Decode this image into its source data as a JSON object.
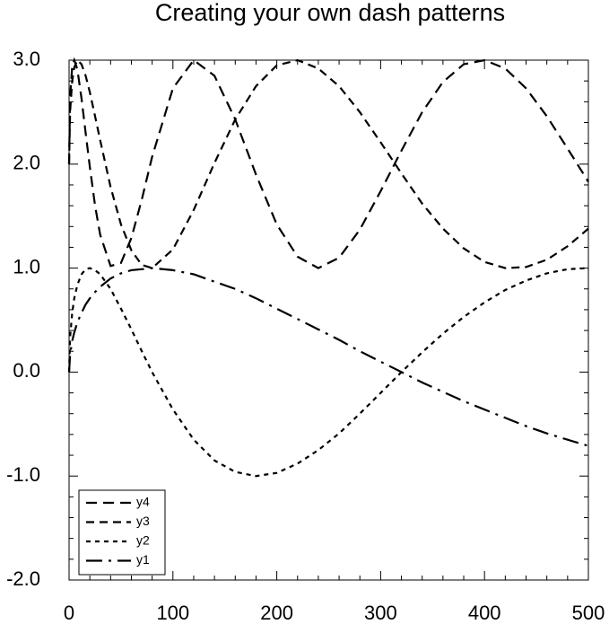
{
  "chart_data": {
    "type": "line",
    "title": "Creating your own dash patterns",
    "x": [
      0,
      1,
      3,
      5,
      8,
      12,
      16,
      20,
      25,
      30,
      40,
      50,
      60,
      70,
      80,
      100,
      120,
      140,
      160,
      180,
      200,
      220,
      240,
      260,
      280,
      300,
      320,
      340,
      360,
      380,
      400,
      420,
      440,
      460,
      480,
      500
    ],
    "series": [
      {
        "name": "y1",
        "color": "#000000",
        "values": [
          0,
          0.17,
          0.3,
          0.38,
          0.48,
          0.57,
          0.65,
          0.71,
          0.77,
          0.82,
          0.9,
          0.95,
          0.98,
          0.99,
          1.0,
          0.98,
          0.94,
          0.87,
          0.8,
          0.71,
          0.61,
          0.51,
          0.41,
          0.31,
          0.2,
          0.1,
          0.0,
          -0.1,
          -0.19,
          -0.28,
          -0.36,
          -0.44,
          -0.52,
          -0.59,
          -0.65,
          -0.71
        ]
      },
      {
        "name": "y2",
        "color": "#000000",
        "values": [
          0,
          0.34,
          0.57,
          0.71,
          0.84,
          0.94,
          0.99,
          1.0,
          0.98,
          0.94,
          0.8,
          0.61,
          0.41,
          0.2,
          0.0,
          -0.36,
          -0.65,
          -0.85,
          -0.96,
          -1.0,
          -0.97,
          -0.88,
          -0.75,
          -0.59,
          -0.4,
          -0.2,
          0.0,
          0.19,
          0.37,
          0.53,
          0.67,
          0.79,
          0.88,
          0.95,
          0.99,
          1.0
        ]
      },
      {
        "name": "y3",
        "color": "#000000",
        "values": [
          2.0,
          2.51,
          2.8,
          2.93,
          3.0,
          2.96,
          2.85,
          2.69,
          2.46,
          2.23,
          1.78,
          1.42,
          1.17,
          1.03,
          1.0,
          1.18,
          1.56,
          2.01,
          2.43,
          2.75,
          2.95,
          3.0,
          2.92,
          2.75,
          2.5,
          2.21,
          1.91,
          1.62,
          1.38,
          1.19,
          1.06,
          1.0,
          1.01,
          1.08,
          1.21,
          1.38
        ]
      },
      {
        "name": "y4",
        "color": "#000000",
        "values": [
          2.0,
          2.65,
          2.94,
          3.0,
          2.91,
          2.63,
          2.3,
          1.97,
          1.6,
          1.32,
          1.02,
          1.05,
          1.29,
          1.66,
          2.07,
          2.73,
          3.0,
          2.85,
          2.43,
          1.9,
          1.42,
          1.11,
          1.0,
          1.1,
          1.37,
          1.74,
          2.13,
          2.5,
          2.79,
          2.96,
          3.0,
          2.92,
          2.73,
          2.46,
          2.15,
          1.83
        ]
      }
    ],
    "xlim": [
      0,
      500
    ],
    "xticks": [
      0,
      100,
      200,
      300,
      400,
      500
    ],
    "ylim": [
      -2,
      3
    ],
    "yticks": [
      {
        "value": -2,
        "label": "-2.0"
      },
      {
        "value": -1,
        "label": "-1.0"
      },
      {
        "value": 0,
        "label": "0.0"
      },
      {
        "value": 1,
        "label": "1.0"
      },
      {
        "value": 2,
        "label": "2.0"
      },
      {
        "value": 3,
        "label": "3.0"
      }
    ],
    "legend": "lower left"
  }
}
